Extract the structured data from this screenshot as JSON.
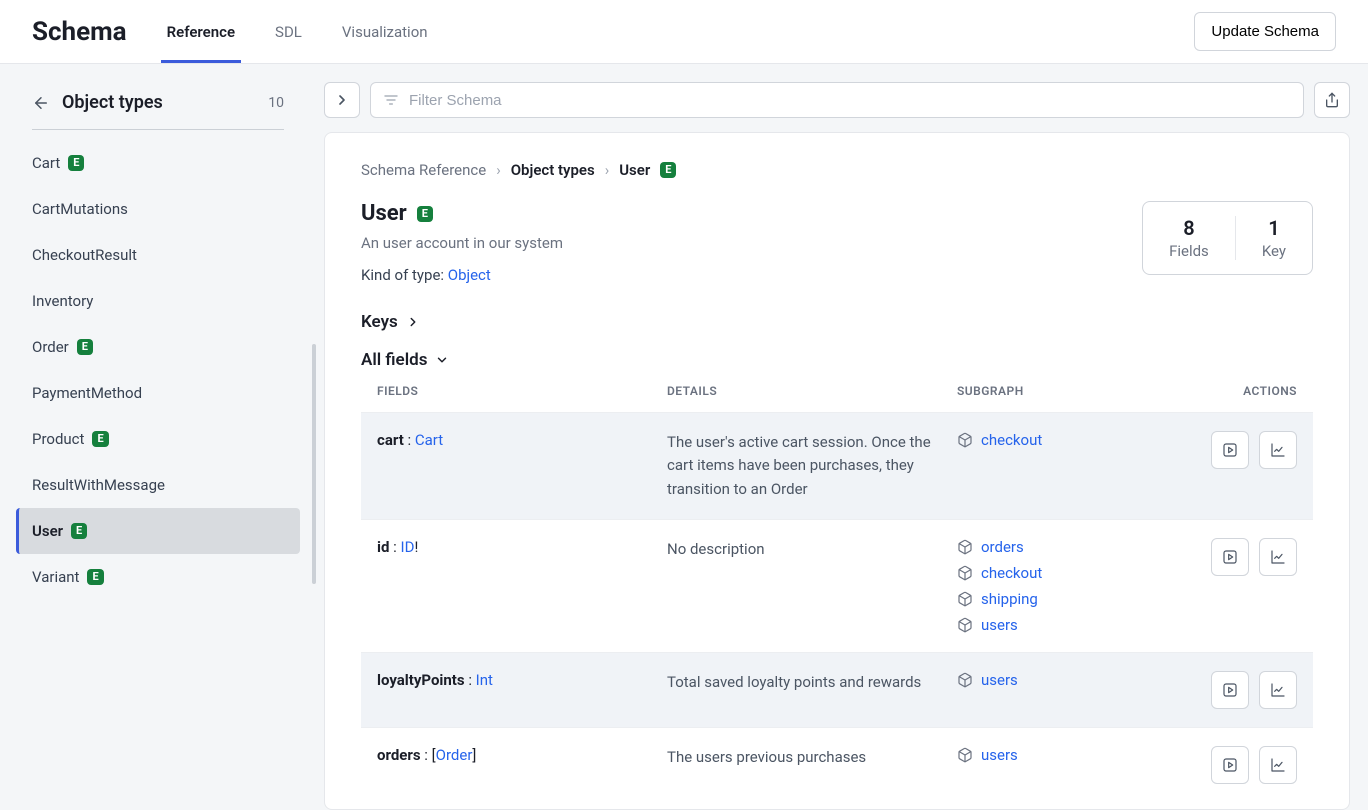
{
  "topbar": {
    "title": "Schema",
    "tabs": [
      {
        "label": "Reference",
        "active": true
      },
      {
        "label": "SDL",
        "active": false
      },
      {
        "label": "Visualization",
        "active": false
      }
    ],
    "update_button": "Update Schema"
  },
  "sidebar": {
    "back_label": "Object types",
    "count": "10",
    "items": [
      {
        "label": "Cart",
        "entity": true
      },
      {
        "label": "CartMutations",
        "entity": false
      },
      {
        "label": "CheckoutResult",
        "entity": false
      },
      {
        "label": "Inventory",
        "entity": false
      },
      {
        "label": "Order",
        "entity": true
      },
      {
        "label": "PaymentMethod",
        "entity": false
      },
      {
        "label": "Product",
        "entity": true
      },
      {
        "label": "ResultWithMessage",
        "entity": false
      },
      {
        "label": "User",
        "entity": true,
        "active": true
      },
      {
        "label": "Variant",
        "entity": true
      }
    ]
  },
  "toolbar": {
    "search_placeholder": "Filter Schema"
  },
  "breadcrumbs": {
    "root": "Schema Reference",
    "group": "Object types",
    "leaf": "User",
    "leaf_entity": true
  },
  "type": {
    "name": "User",
    "entity": true,
    "description": "An user account in our system",
    "kind_label": "Kind of type: ",
    "kind_value": "Object"
  },
  "stats": {
    "fields_count": "8",
    "fields_label": "Fields",
    "keys_count": "1",
    "keys_label": "Key"
  },
  "sections": {
    "keys": "Keys",
    "all_fields": "All fields"
  },
  "table_headers": {
    "fields": "FIELDS",
    "details": "DETAILS",
    "subgraph": "SUBGRAPH",
    "actions": "ACTIONS"
  },
  "fields": [
    {
      "name": "cart",
      "type": "Cart",
      "prefix": "",
      "suffix": "",
      "details": "The user's active cart session. Once the cart items have been purchases, they transition to an Order",
      "subgraphs": [
        "checkout"
      ],
      "alt": true
    },
    {
      "name": "id",
      "type": "ID",
      "prefix": "",
      "suffix": "!",
      "details": "No description",
      "subgraphs": [
        "orders",
        "checkout",
        "shipping",
        "users"
      ],
      "alt": false
    },
    {
      "name": "loyaltyPoints",
      "type": "Int",
      "prefix": "",
      "suffix": "",
      "details": "Total saved loyalty points and rewards",
      "subgraphs": [
        "users"
      ],
      "alt": true
    },
    {
      "name": "orders",
      "type": "Order",
      "prefix": "[",
      "suffix": "]",
      "details": "The users previous purchases",
      "subgraphs": [
        "users"
      ],
      "alt": false
    }
  ],
  "badge": {
    "e_text": "E"
  },
  "colors": {
    "accent": "#3b5bdb",
    "link": "#2563eb",
    "badge_bg": "#15803d",
    "bg": "#f4f6f8",
    "border": "#d1d5db",
    "text_muted": "#6b7280",
    "row_alt": "#f0f3f7"
  }
}
